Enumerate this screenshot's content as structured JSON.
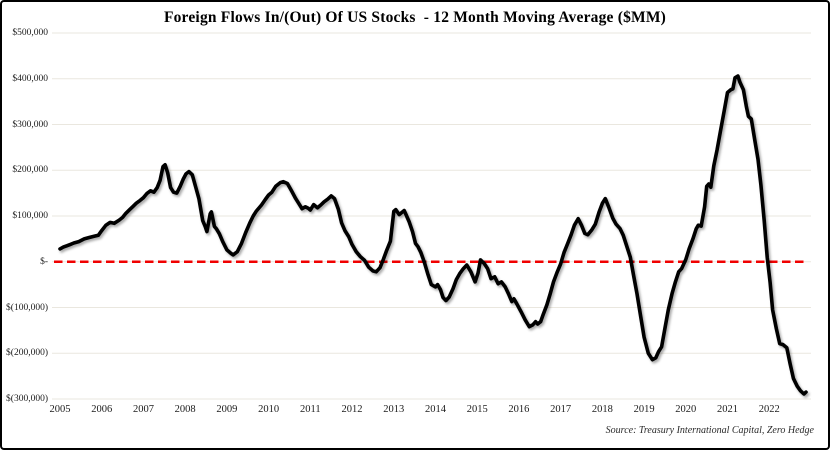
{
  "header": {
    "title": "Foreign Flows In/(Out) Of US Stocks  - 12 Month Moving Average ($MM)"
  },
  "footer": {
    "source": "Source: Treasury International Capital, Zero Hedge"
  },
  "colors": {
    "line": "#000000",
    "zero_line": "#f00000",
    "grid": "#eae7df",
    "border": "#000000",
    "background": "#ffffff",
    "label_text": "#1c1c1c"
  },
  "chart_data": {
    "type": "line",
    "title": "Foreign Flows In/(Out) Of US Stocks  - 12 Month Moving Average ($MM)",
    "xlabel": "",
    "ylabel": "",
    "grid": "horizontal-only",
    "legend": "none",
    "xlim": [
      2004.8,
      2023.05
    ],
    "ylim": [
      -300000,
      500000
    ],
    "x_ticks": [
      2005,
      2006,
      2007,
      2008,
      2009,
      2010,
      2011,
      2012,
      2013,
      2014,
      2015,
      2016,
      2017,
      2018,
      2019,
      2020,
      2021,
      2022
    ],
    "y_ticks": [
      {
        "value": 500000,
        "label": "$500,000"
      },
      {
        "value": 400000,
        "label": "$400,000"
      },
      {
        "value": 300000,
        "label": "$300,000"
      },
      {
        "value": 200000,
        "label": "$200,000"
      },
      {
        "value": 100000,
        "label": "$100,000"
      },
      {
        "value": 0,
        "label": "$-"
      },
      {
        "value": -100000,
        "label": "$(100,000)"
      },
      {
        "value": -200000,
        "label": "$(200,000)"
      },
      {
        "value": -300000,
        "label": "$(300,000)"
      }
    ],
    "zero_reference_line": {
      "value": 0,
      "style": "dashed",
      "color": "#f00000"
    },
    "source": "Source: Treasury International Capital, Zero Hedge",
    "series": [
      {
        "name": "Foreign flows into US stocks, 12-month moving average ($MM)",
        "points": [
          [
            2005.0,
            28000
          ],
          [
            2005.08,
            32000
          ],
          [
            2005.17,
            35000
          ],
          [
            2005.25,
            38000
          ],
          [
            2005.33,
            41000
          ],
          [
            2005.45,
            44000
          ],
          [
            2005.58,
            50000
          ],
          [
            2005.7,
            53000
          ],
          [
            2005.83,
            56000
          ],
          [
            2005.92,
            58000
          ],
          [
            2006.0,
            68000
          ],
          [
            2006.1,
            80000
          ],
          [
            2006.2,
            86000
          ],
          [
            2006.3,
            84000
          ],
          [
            2006.42,
            91000
          ],
          [
            2006.5,
            97000
          ],
          [
            2006.58,
            106000
          ],
          [
            2006.67,
            114000
          ],
          [
            2006.75,
            121000
          ],
          [
            2006.83,
            128000
          ],
          [
            2006.92,
            134000
          ],
          [
            2007.0,
            140000
          ],
          [
            2007.08,
            149000
          ],
          [
            2007.17,
            155000
          ],
          [
            2007.25,
            152000
          ],
          [
            2007.33,
            162000
          ],
          [
            2007.4,
            178000
          ],
          [
            2007.47,
            208000
          ],
          [
            2007.52,
            212000
          ],
          [
            2007.58,
            195000
          ],
          [
            2007.65,
            162000
          ],
          [
            2007.72,
            152000
          ],
          [
            2007.8,
            150000
          ],
          [
            2007.88,
            165000
          ],
          [
            2007.95,
            180000
          ],
          [
            2008.02,
            192000
          ],
          [
            2008.09,
            197000
          ],
          [
            2008.17,
            190000
          ],
          [
            2008.25,
            164000
          ],
          [
            2008.33,
            138000
          ],
          [
            2008.42,
            90000
          ],
          [
            2008.48,
            77000
          ],
          [
            2008.52,
            66000
          ],
          [
            2008.6,
            105000
          ],
          [
            2008.63,
            109000
          ],
          [
            2008.7,
            77000
          ],
          [
            2008.75,
            72000
          ],
          [
            2008.82,
            61000
          ],
          [
            2008.9,
            44000
          ],
          [
            2009.0,
            26000
          ],
          [
            2009.1,
            18000
          ],
          [
            2009.15,
            15000
          ],
          [
            2009.25,
            22000
          ],
          [
            2009.35,
            40000
          ],
          [
            2009.45,
            64000
          ],
          [
            2009.55,
            85000
          ],
          [
            2009.63,
            100000
          ],
          [
            2009.7,
            110000
          ],
          [
            2009.83,
            124000
          ],
          [
            2009.92,
            136000
          ],
          [
            2010.0,
            146000
          ],
          [
            2010.08,
            152000
          ],
          [
            2010.17,
            165000
          ],
          [
            2010.28,
            173000
          ],
          [
            2010.35,
            175000
          ],
          [
            2010.45,
            171000
          ],
          [
            2010.55,
            155000
          ],
          [
            2010.65,
            138000
          ],
          [
            2010.72,
            128000
          ],
          [
            2010.8,
            116000
          ],
          [
            2010.88,
            120000
          ],
          [
            2010.95,
            117000
          ],
          [
            2011.0,
            113000
          ],
          [
            2011.08,
            125000
          ],
          [
            2011.17,
            118000
          ],
          [
            2011.25,
            124000
          ],
          [
            2011.33,
            131000
          ],
          [
            2011.42,
            137000
          ],
          [
            2011.5,
            144000
          ],
          [
            2011.58,
            138000
          ],
          [
            2011.67,
            115000
          ],
          [
            2011.75,
            85000
          ],
          [
            2011.83,
            68000
          ],
          [
            2011.92,
            55000
          ],
          [
            2012.0,
            38000
          ],
          [
            2012.1,
            22000
          ],
          [
            2012.2,
            11000
          ],
          [
            2012.3,
            3000
          ],
          [
            2012.4,
            -12000
          ],
          [
            2012.5,
            -20000
          ],
          [
            2012.58,
            -22000
          ],
          [
            2012.67,
            -13000
          ],
          [
            2012.75,
            5000
          ],
          [
            2012.83,
            25000
          ],
          [
            2012.92,
            45000
          ],
          [
            2013.0,
            110000
          ],
          [
            2013.05,
            114000
          ],
          [
            2013.13,
            103000
          ],
          [
            2013.25,
            112000
          ],
          [
            2013.37,
            87000
          ],
          [
            2013.45,
            66000
          ],
          [
            2013.52,
            40000
          ],
          [
            2013.58,
            33000
          ],
          [
            2013.65,
            20000
          ],
          [
            2013.73,
            0
          ],
          [
            2013.82,
            -28000
          ],
          [
            2013.9,
            -50000
          ],
          [
            2014.0,
            -55000
          ],
          [
            2014.05,
            -50000
          ],
          [
            2014.12,
            -61000
          ],
          [
            2014.18,
            -78000
          ],
          [
            2014.25,
            -85000
          ],
          [
            2014.33,
            -77000
          ],
          [
            2014.42,
            -59000
          ],
          [
            2014.5,
            -39000
          ],
          [
            2014.58,
            -26000
          ],
          [
            2014.67,
            -15000
          ],
          [
            2014.75,
            -7000
          ],
          [
            2014.85,
            -22000
          ],
          [
            2014.95,
            -44000
          ],
          [
            2015.02,
            -25000
          ],
          [
            2015.08,
            4000
          ],
          [
            2015.17,
            -4000
          ],
          [
            2015.25,
            -15000
          ],
          [
            2015.33,
            -37000
          ],
          [
            2015.42,
            -33000
          ],
          [
            2015.5,
            -48000
          ],
          [
            2015.58,
            -44000
          ],
          [
            2015.67,
            -55000
          ],
          [
            2015.75,
            -70000
          ],
          [
            2015.83,
            -87000
          ],
          [
            2015.88,
            -81000
          ],
          [
            2015.95,
            -92000
          ],
          [
            2016.05,
            -109000
          ],
          [
            2016.15,
            -127000
          ],
          [
            2016.25,
            -142000
          ],
          [
            2016.33,
            -138000
          ],
          [
            2016.4,
            -131000
          ],
          [
            2016.45,
            -136000
          ],
          [
            2016.52,
            -131000
          ],
          [
            2016.58,
            -116000
          ],
          [
            2016.67,
            -94000
          ],
          [
            2016.75,
            -70000
          ],
          [
            2016.83,
            -44000
          ],
          [
            2016.92,
            -22000
          ],
          [
            2017.0,
            -5000
          ],
          [
            2017.08,
            20000
          ],
          [
            2017.17,
            40000
          ],
          [
            2017.25,
            59000
          ],
          [
            2017.33,
            80000
          ],
          [
            2017.42,
            94000
          ],
          [
            2017.5,
            80000
          ],
          [
            2017.58,
            62000
          ],
          [
            2017.65,
            59000
          ],
          [
            2017.75,
            70000
          ],
          [
            2017.83,
            82000
          ],
          [
            2017.92,
            108000
          ],
          [
            2018.0,
            128000
          ],
          [
            2018.07,
            138000
          ],
          [
            2018.15,
            120000
          ],
          [
            2018.25,
            95000
          ],
          [
            2018.33,
            82000
          ],
          [
            2018.42,
            73000
          ],
          [
            2018.5,
            58000
          ],
          [
            2018.58,
            35000
          ],
          [
            2018.67,
            10000
          ],
          [
            2018.75,
            -30000
          ],
          [
            2018.83,
            -70000
          ],
          [
            2018.92,
            -120000
          ],
          [
            2019.0,
            -165000
          ],
          [
            2019.1,
            -200000
          ],
          [
            2019.2,
            -214000
          ],
          [
            2019.28,
            -210000
          ],
          [
            2019.35,
            -196000
          ],
          [
            2019.42,
            -186000
          ],
          [
            2019.5,
            -146000
          ],
          [
            2019.58,
            -105000
          ],
          [
            2019.67,
            -70000
          ],
          [
            2019.75,
            -44000
          ],
          [
            2019.83,
            -22000
          ],
          [
            2019.9,
            -15000
          ],
          [
            2020.0,
            5000
          ],
          [
            2020.08,
            28000
          ],
          [
            2020.17,
            50000
          ],
          [
            2020.25,
            72000
          ],
          [
            2020.3,
            80000
          ],
          [
            2020.37,
            78000
          ],
          [
            2020.45,
            120000
          ],
          [
            2020.5,
            165000
          ],
          [
            2020.55,
            170000
          ],
          [
            2020.6,
            163000
          ],
          [
            2020.67,
            210000
          ],
          [
            2020.75,
            245000
          ],
          [
            2020.83,
            285000
          ],
          [
            2020.92,
            330000
          ],
          [
            2021.0,
            370000
          ],
          [
            2021.08,
            376000
          ],
          [
            2021.13,
            378000
          ],
          [
            2021.18,
            402000
          ],
          [
            2021.25,
            406000
          ],
          [
            2021.3,
            392000
          ],
          [
            2021.38,
            376000
          ],
          [
            2021.45,
            340000
          ],
          [
            2021.5,
            318000
          ],
          [
            2021.57,
            312000
          ],
          [
            2021.65,
            268000
          ],
          [
            2021.73,
            224000
          ],
          [
            2021.8,
            168000
          ],
          [
            2021.88,
            90000
          ],
          [
            2021.95,
            10000
          ],
          [
            2022.02,
            -45000
          ],
          [
            2022.08,
            -105000
          ],
          [
            2022.17,
            -146000
          ],
          [
            2022.25,
            -179000
          ],
          [
            2022.33,
            -181000
          ],
          [
            2022.42,
            -188000
          ],
          [
            2022.5,
            -223000
          ],
          [
            2022.58,
            -255000
          ],
          [
            2022.67,
            -272000
          ],
          [
            2022.75,
            -282000
          ],
          [
            2022.83,
            -289000
          ],
          [
            2022.88,
            -285000
          ]
        ]
      }
    ]
  }
}
